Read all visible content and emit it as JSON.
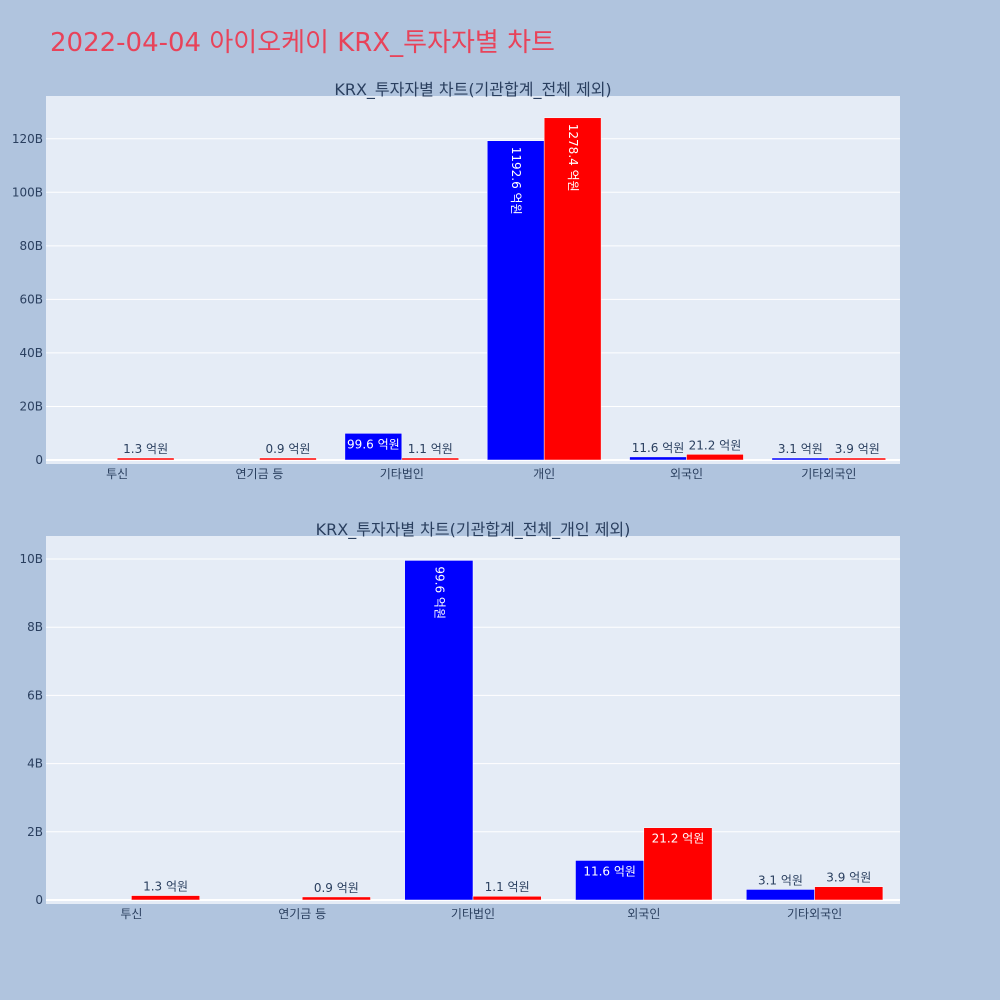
{
  "page": {
    "title": "2022-04-04 아이오케이 KRX_투자자별 차트"
  },
  "chart_data": [
    {
      "type": "bar",
      "title": "KRX_투자자별 차트(기관합계_전체 제외)",
      "categories": [
        "투신",
        "연기금 등",
        "기타법인",
        "개인",
        "외국인",
        "기타외국인"
      ],
      "ylim": [
        0,
        130
      ],
      "yticks": [
        0,
        20,
        40,
        60,
        80,
        100,
        120
      ],
      "ytick_labels": [
        "0",
        "20B",
        "40B",
        "60B",
        "80B",
        "100B",
        "120B"
      ],
      "grid": true,
      "series": [
        {
          "color": "#0000ff",
          "values": [
            0,
            0,
            9.96,
            119.26,
            1.16,
            0.31
          ],
          "labels": [
            "",
            "",
            "99.6 억원",
            "1192.6 억원",
            "11.6 억원",
            "3.1 억원"
          ]
        },
        {
          "color": "#ff0000",
          "values": [
            0.13,
            0.09,
            0.11,
            127.84,
            2.12,
            0.39
          ],
          "labels": [
            "1.3 억원",
            "0.9 억원",
            "1.1 억원",
            "1278.4 억원",
            "21.2 억원",
            "3.9 억원"
          ]
        }
      ]
    },
    {
      "type": "bar",
      "title": "KRX_투자자별 차트(기관합계_전체_개인 제외)",
      "categories": [
        "투신",
        "연기금 등",
        "기타법인",
        "외국인",
        "기타외국인"
      ],
      "ylim": [
        0,
        10.5
      ],
      "yticks": [
        0,
        2,
        4,
        6,
        8,
        10
      ],
      "ytick_labels": [
        "0",
        "2B",
        "4B",
        "6B",
        "8B",
        "10B"
      ],
      "grid": true,
      "series": [
        {
          "color": "#0000ff",
          "values": [
            0,
            0,
            9.96,
            1.16,
            0.31
          ],
          "labels": [
            "",
            "",
            "99.6 억원",
            "11.6 억원",
            "3.1 억원"
          ]
        },
        {
          "color": "#ff0000",
          "values": [
            0.13,
            0.09,
            0.11,
            2.12,
            0.39
          ],
          "labels": [
            "1.3 억원",
            "0.9 억원",
            "1.1 억원",
            "21.2 억원",
            "3.9 억원"
          ]
        }
      ]
    }
  ]
}
